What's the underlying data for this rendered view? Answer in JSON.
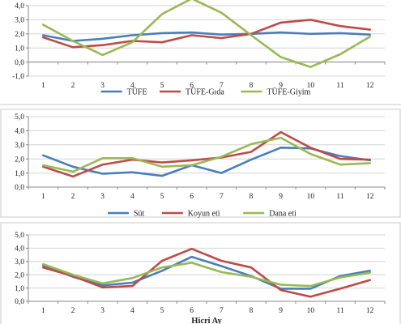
{
  "chart_data": [
    {
      "type": "line",
      "categories": [
        "1",
        "2",
        "3",
        "4",
        "5",
        "6",
        "7",
        "8",
        "9",
        "10",
        "11",
        "12"
      ],
      "ylim": [
        -1.0,
        4.0
      ],
      "yticks": [
        "-1,0",
        "0,0",
        "1,0",
        "2,0",
        "3,0",
        "4,0"
      ],
      "grid": true,
      "legend": "bottom",
      "series": [
        {
          "name": "TÜFE",
          "color": "#4a7ebb",
          "values": [
            1.9,
            1.5,
            1.65,
            1.9,
            2.05,
            2.1,
            1.95,
            2.0,
            2.1,
            2.0,
            2.05,
            1.95
          ]
        },
        {
          "name": "TÜFE-Gıda",
          "color": "#be4b48",
          "values": [
            1.75,
            1.05,
            1.2,
            1.5,
            1.4,
            1.9,
            1.7,
            2.0,
            2.8,
            3.0,
            2.55,
            2.3
          ]
        },
        {
          "name": "TÜFE-Giyim",
          "color": "#98b954",
          "values": [
            2.65,
            1.5,
            0.5,
            1.4,
            3.4,
            4.5,
            3.5,
            1.9,
            0.35,
            -0.35,
            0.55,
            1.8
          ]
        }
      ]
    },
    {
      "type": "line",
      "categories": [
        "1",
        "2",
        "3",
        "4",
        "5",
        "6",
        "7",
        "8",
        "9",
        "10",
        "11",
        "12"
      ],
      "ylim": [
        0.0,
        5.0
      ],
      "yticks": [
        "0,0",
        "1,0",
        "2,0",
        "3,0",
        "4,0",
        "5,0"
      ],
      "grid": true,
      "legend": "bottom",
      "series": [
        {
          "name": "Süt",
          "color": "#4a7ebb",
          "values": [
            2.25,
            1.45,
            0.95,
            1.05,
            0.8,
            1.55,
            1.0,
            1.95,
            2.8,
            2.75,
            2.2,
            1.9
          ]
        },
        {
          "name": "Koyun eti",
          "color": "#be4b48",
          "values": [
            1.45,
            0.75,
            1.6,
            1.95,
            1.75,
            1.9,
            2.1,
            2.5,
            3.9,
            2.8,
            2.0,
            1.95
          ]
        },
        {
          "name": "Dana eti",
          "color": "#98b954",
          "values": [
            1.55,
            1.1,
            2.05,
            2.05,
            1.45,
            1.55,
            2.15,
            3.05,
            3.5,
            2.35,
            1.6,
            1.7
          ]
        }
      ]
    },
    {
      "type": "line",
      "categories": [
        "1",
        "2",
        "3",
        "4",
        "5",
        "6",
        "7",
        "8",
        "9",
        "10",
        "11",
        "12"
      ],
      "ylim": [
        0.0,
        5.0
      ],
      "yticks": [
        "0,0",
        "1,0",
        "2,0",
        "3,0",
        "4,0",
        "5,0"
      ],
      "grid": true,
      "xlabel": "Hicri Ay",
      "series": [
        {
          "color": "#4a7ebb",
          "values": [
            2.7,
            1.85,
            1.2,
            1.4,
            2.3,
            3.35,
            2.65,
            1.9,
            0.95,
            0.95,
            1.9,
            2.3
          ]
        },
        {
          "color": "#be4b48",
          "values": [
            2.55,
            1.9,
            1.05,
            1.15,
            3.05,
            3.95,
            3.05,
            2.55,
            0.85,
            0.35,
            0.95,
            1.6
          ]
        },
        {
          "color": "#98b954",
          "values": [
            2.8,
            2.0,
            1.35,
            1.75,
            2.55,
            2.9,
            2.2,
            1.85,
            1.25,
            1.15,
            1.8,
            2.15
          ]
        }
      ]
    }
  ]
}
